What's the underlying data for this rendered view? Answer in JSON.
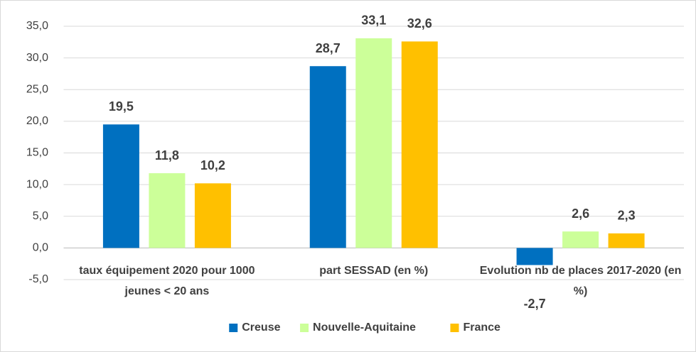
{
  "chart_data": {
    "type": "bar",
    "categories": [
      "taux équipement 2020 pour 1000 jeunes < 20 ans",
      "part SESSAD (en %)",
      "Evolution nb de places 2017-2020 (en %)"
    ],
    "series": [
      {
        "name": "Creuse",
        "color": "#0070c0",
        "values": [
          19.5,
          28.7,
          -2.7
        ],
        "value_labels": [
          "19,5",
          "28,7",
          "-2,7"
        ]
      },
      {
        "name": "Nouvelle-Aquitaine",
        "color": "#ccff99",
        "values": [
          11.8,
          33.1,
          2.6
        ],
        "value_labels": [
          "11,8",
          "33,1",
          "2,6"
        ]
      },
      {
        "name": "France",
        "color": "#ffc000",
        "values": [
          10.2,
          32.6,
          2.3
        ],
        "value_labels": [
          "10,2",
          "32,6",
          "2,3"
        ]
      }
    ],
    "ylim": [
      -5,
      35
    ],
    "yticks": [
      {
        "value": -5,
        "label": "-5,0"
      },
      {
        "value": 0,
        "label": "0,0"
      },
      {
        "value": 5,
        "label": "5,0"
      },
      {
        "value": 10,
        "label": "10,0"
      },
      {
        "value": 15,
        "label": "15,0"
      },
      {
        "value": 20,
        "label": "20,0"
      },
      {
        "value": 25,
        "label": "25,0"
      },
      {
        "value": 30,
        "label": "30,0"
      },
      {
        "value": 35,
        "label": "35,0"
      }
    ],
    "grid": true,
    "legend": "bottom"
  }
}
